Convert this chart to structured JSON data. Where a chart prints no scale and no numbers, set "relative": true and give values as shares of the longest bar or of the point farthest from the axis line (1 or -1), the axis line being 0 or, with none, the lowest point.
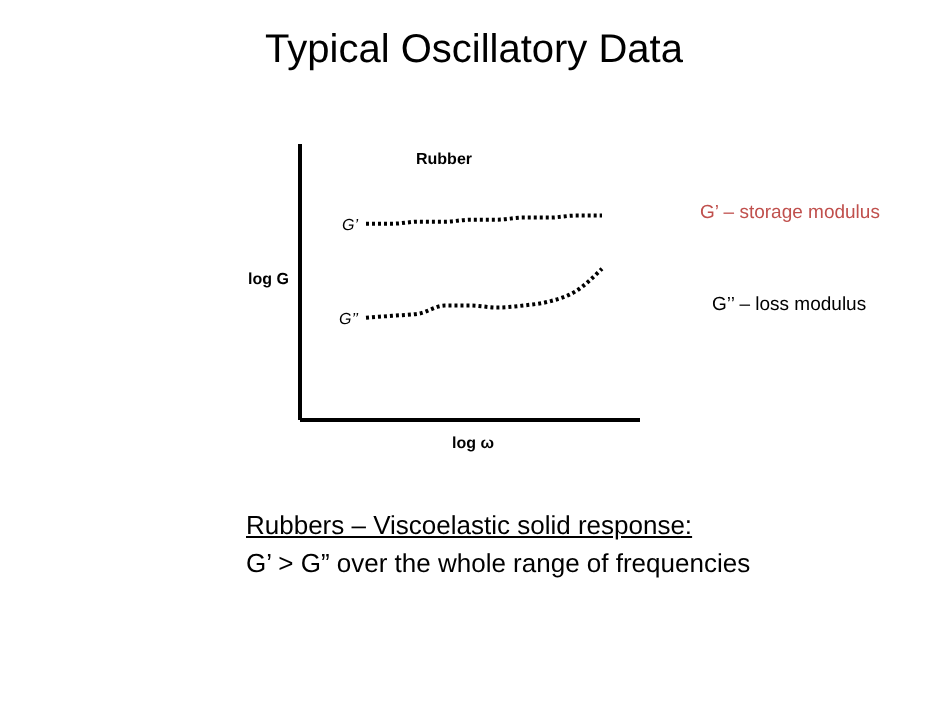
{
  "chart_data": {
    "type": "line",
    "title": "Typical Oscillatory Data",
    "subtitle": "Rubber",
    "xlabel": "log ω",
    "ylabel": "log G",
    "relative": true,
    "legend": false,
    "grid": false,
    "marker": "none",
    "line_style": "dotted",
    "categories": [
      null,
      null,
      null,
      null,
      null,
      null,
      null,
      null,
      null,
      null
    ],
    "series": [
      {
        "name": "G’",
        "color": "#000000",
        "values": [
          0.96,
          0.96,
          0.97,
          0.97,
          0.98,
          0.98,
          0.99,
          0.99,
          1,
          1
        ]
      },
      {
        "name": "G’’",
        "color": "#000000",
        "values": [
          0.5,
          0.51,
          0.52,
          0.56,
          0.56,
          0.55,
          0.56,
          0.58,
          0.63,
          0.74
        ]
      }
    ],
    "annotations": [
      "G’ – storage modulus",
      "G’’ – loss modulus",
      "Rubbers – Viscoelastic solid response:",
      "G’ > G” over the whole range of frequencies"
    ]
  }
}
